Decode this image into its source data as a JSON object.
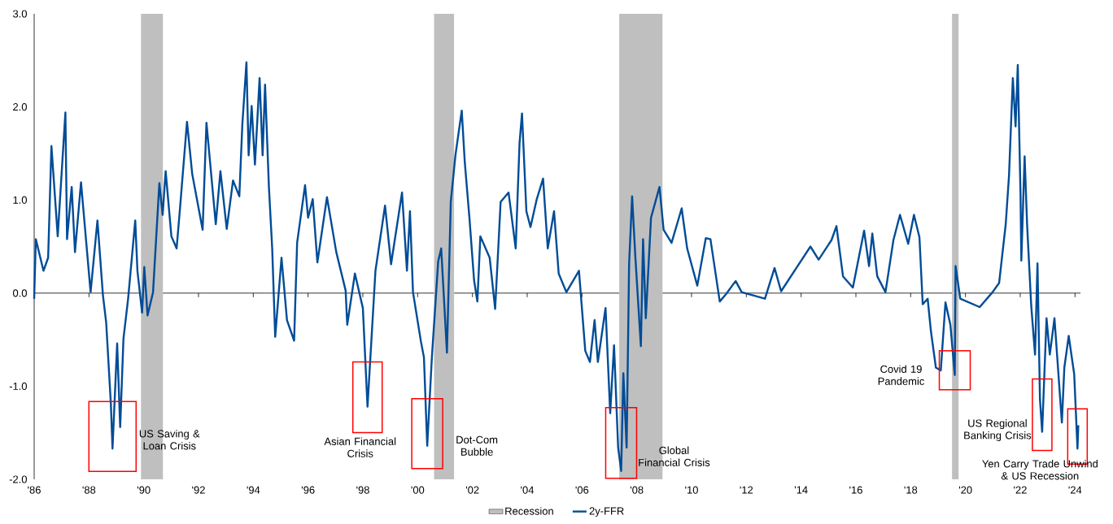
{
  "chart_data": {
    "type": "line",
    "legend": "bottom",
    "xlim": [
      1986,
      2024.2
    ],
    "ylim": [
      -2,
      3
    ],
    "xticks": [
      {
        "value": 1986,
        "label": "'86"
      },
      {
        "value": 1988,
        "label": "'88"
      },
      {
        "value": 1990,
        "label": "'90"
      },
      {
        "value": 1992,
        "label": "'92"
      },
      {
        "value": 1994,
        "label": "'94"
      },
      {
        "value": 1996,
        "label": "'96"
      },
      {
        "value": 1998,
        "label": "'98"
      },
      {
        "value": 2000,
        "label": "'00"
      },
      {
        "value": 2002,
        "label": "'02"
      },
      {
        "value": 2004,
        "label": "'04"
      },
      {
        "value": 2006,
        "label": "'06"
      },
      {
        "value": 2008,
        "label": "'08"
      },
      {
        "value": 2010,
        "label": "'10"
      },
      {
        "value": 2012,
        "label": "'12"
      },
      {
        "value": 2014,
        "label": "'14"
      },
      {
        "value": 2016,
        "label": "'16"
      },
      {
        "value": 2018,
        "label": "'18"
      },
      {
        "value": 2020,
        "label": "'20"
      },
      {
        "value": 2022,
        "label": "'22"
      },
      {
        "value": 2024,
        "label": "'24"
      }
    ],
    "yticks": [
      {
        "value": -2,
        "label": "-2.0"
      },
      {
        "value": -1,
        "label": "-1.0"
      },
      {
        "value": 0,
        "label": "0.0"
      },
      {
        "value": 1,
        "label": "1.0"
      },
      {
        "value": 2,
        "label": "2.0"
      },
      {
        "value": 3,
        "label": "3.0"
      }
    ],
    "x": [
      1986.0,
      1986.06,
      1986.34,
      1986.51,
      1986.63,
      1986.86,
      1987.14,
      1987.2,
      1987.37,
      1987.49,
      1987.71,
      1988.06,
      1988.31,
      1988.51,
      1988.63,
      1988.8,
      1988.86,
      1989.03,
      1989.14,
      1989.26,
      1989.43,
      1989.69,
      1989.77,
      1989.94,
      1990.02,
      1990.14,
      1990.34,
      1990.57,
      1990.69,
      1990.8,
      1991.01,
      1991.2,
      1991.31,
      1991.58,
      1991.77,
      1992.15,
      1992.29,
      1992.63,
      1992.8,
      1993.03,
      1993.26,
      1993.49,
      1993.6,
      1993.75,
      1993.83,
      1993.94,
      1994.06,
      1994.23,
      1994.34,
      1994.43,
      1994.57,
      1994.69,
      1994.8,
      1995.03,
      1995.23,
      1995.49,
      1995.6,
      1995.89,
      1996.0,
      1996.17,
      1996.34,
      1996.69,
      1997.03,
      1997.37,
      1997.43,
      1997.71,
      1998.0,
      1998.17,
      1998.46,
      1998.81,
      1999.03,
      1999.43,
      1999.61,
      1999.72,
      1999.83,
      2000.12,
      2000.23,
      2000.35,
      2000.52,
      2000.75,
      2000.86,
      2001.07,
      2001.21,
      2001.38,
      2001.61,
      2001.72,
      2001.89,
      2002.06,
      2002.18,
      2002.29,
      2002.63,
      2002.83,
      2003.03,
      2003.32,
      2003.58,
      2003.72,
      2003.81,
      2003.97,
      2004.12,
      2004.35,
      2004.58,
      2004.75,
      2004.98,
      2005.15,
      2005.43,
      2005.89,
      2006.12,
      2006.29,
      2006.46,
      2006.58,
      2006.86,
      2007.03,
      2007.17,
      2007.32,
      2007.43,
      2007.51,
      2007.63,
      2007.72,
      2007.83,
      2007.95,
      2008.15,
      2008.23,
      2008.33,
      2008.52,
      2008.83,
      2008.98,
      2009.27,
      2009.64,
      2009.84,
      2010.21,
      2010.52,
      2010.69,
      2011.03,
      2011.26,
      2011.61,
      2011.83,
      2012.68,
      2013.03,
      2013.27,
      2013.87,
      2014.34,
      2014.64,
      2015.11,
      2015.29,
      2015.53,
      2015.89,
      2016.3,
      2016.48,
      2016.6,
      2016.78,
      2017.08,
      2017.37,
      2017.61,
      2017.91,
      2018.12,
      2018.32,
      2018.44,
      2018.62,
      2018.74,
      2018.92,
      2019.1,
      2019.27,
      2019.45,
      2019.61,
      2019.64,
      2019.81,
      2020.52,
      2020.99,
      2021.23,
      2021.47,
      2021.59,
      2021.73,
      2021.83,
      2021.91,
      2022.01,
      2022.04,
      2022.16,
      2022.25,
      2022.4,
      2022.54,
      2022.63,
      2022.72,
      2022.8,
      2022.96,
      2023.08,
      2023.25,
      2023.52,
      2023.61,
      2023.77,
      2023.97,
      2024.09,
      2024.12
    ],
    "series": [
      {
        "name": "2y-FFR",
        "color": "#004c97",
        "values": [
          -0.06,
          0.58,
          0.24,
          0.38,
          1.58,
          0.61,
          1.94,
          0.58,
          1.14,
          0.44,
          1.19,
          0.01,
          0.78,
          -0.02,
          -0.32,
          -1.19,
          -1.67,
          -0.54,
          -1.44,
          -0.49,
          -0.06,
          0.78,
          0.24,
          -0.21,
          0.28,
          -0.24,
          0.01,
          1.18,
          0.84,
          1.31,
          0.61,
          0.48,
          0.86,
          1.84,
          1.28,
          0.68,
          1.83,
          0.74,
          1.31,
          0.69,
          1.21,
          1.04,
          1.81,
          2.48,
          1.48,
          2.01,
          1.38,
          2.31,
          1.48,
          2.24,
          1.14,
          0.48,
          -0.47,
          0.38,
          -0.29,
          -0.51,
          0.54,
          1.16,
          0.81,
          1.01,
          0.33,
          1.03,
          0.44,
          0.03,
          -0.34,
          0.21,
          -0.16,
          -1.22,
          0.24,
          0.94,
          0.31,
          1.08,
          0.24,
          0.88,
          0.01,
          -0.52,
          -0.69,
          -1.64,
          -0.69,
          0.34,
          0.48,
          -0.64,
          0.98,
          1.48,
          1.96,
          1.41,
          0.81,
          0.14,
          -0.09,
          0.61,
          0.38,
          -0.17,
          0.98,
          1.08,
          0.48,
          1.61,
          1.93,
          0.88,
          0.71,
          1.01,
          1.23,
          0.48,
          0.88,
          0.21,
          0.01,
          0.24,
          -0.62,
          -0.74,
          -0.29,
          -0.74,
          -0.16,
          -1.29,
          -0.56,
          -1.66,
          -1.91,
          -0.86,
          -1.66,
          0.31,
          1.04,
          0.38,
          -0.57,
          0.58,
          -0.27,
          0.81,
          1.14,
          0.68,
          0.54,
          0.91,
          0.48,
          0.08,
          0.59,
          0.58,
          -0.09,
          -0.01,
          0.13,
          0.01,
          -0.06,
          0.27,
          0.02,
          0.29,
          0.5,
          0.36,
          0.57,
          0.72,
          0.18,
          0.06,
          0.67,
          0.29,
          0.64,
          0.18,
          0.01,
          0.57,
          0.84,
          0.53,
          0.84,
          0.6,
          -0.12,
          -0.06,
          -0.41,
          -0.8,
          -0.83,
          -0.1,
          -0.34,
          -0.88,
          0.29,
          -0.06,
          -0.15,
          0.01,
          0.11,
          0.74,
          1.26,
          2.31,
          1.79,
          2.45,
          1.07,
          0.35,
          1.47,
          0.74,
          -0.13,
          -0.66,
          0.32,
          -1.14,
          -1.49,
          -0.27,
          -0.66,
          -0.27,
          -1.39,
          -0.8,
          -0.46,
          -0.87,
          -1.67,
          -1.42
        ]
      }
    ],
    "bands": [
      {
        "axis": "x",
        "from": 1989.9,
        "to": 1990.7,
        "label": "Recession",
        "color": "#bfbfbf"
      },
      {
        "axis": "x",
        "from": 2000.6,
        "to": 2001.33,
        "color": "#bfbfbf"
      },
      {
        "axis": "x",
        "from": 2007.36,
        "to": 2008.94,
        "color": "#bfbfbf"
      },
      {
        "axis": "x",
        "from": 2019.51,
        "to": 2019.75,
        "color": "#bfbfbf"
      }
    ],
    "annotations": [
      {
        "text": "US Saving & Loan Crisis",
        "x": 1988.86,
        "y": -1.67
      },
      {
        "text": "Asian Financial Crisis",
        "x": 1998.17,
        "y": -1.22
      },
      {
        "text": "Dot-Com Bubble",
        "x": 2000.35,
        "y": -1.64
      },
      {
        "text": "Global Financial Crisis",
        "x": 2007.43,
        "y": -1.91
      },
      {
        "text": "Covid 19 Pandemic",
        "x": 2019.61,
        "y": -0.88
      },
      {
        "text": "US Regional Banking Crisis",
        "x": 2022.8,
        "y": -1.49
      },
      {
        "text": "Yen Carry Trade Unwind & US Recession",
        "x": 2024.09,
        "y": -1.67
      }
    ]
  }
}
